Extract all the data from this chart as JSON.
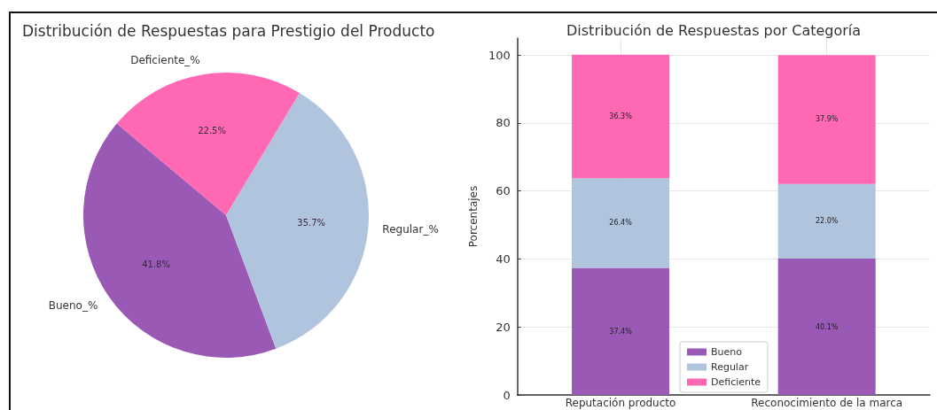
{
  "chart_data": [
    {
      "type": "pie",
      "title": "Distribución de Respuestas para Prestigio del Producto",
      "categories": [
        "Bueno_%",
        "Regular_%",
        "Deficiente_%"
      ],
      "values": [
        41.8,
        35.7,
        22.5
      ],
      "colors": [
        "#9b59b6",
        "#b0c4de",
        "#ff69b4"
      ],
      "value_labels": [
        "41.8%",
        "35.7%",
        "22.5%"
      ]
    },
    {
      "type": "bar",
      "stacked": true,
      "title": "Distribución de Respuestas por Categoría",
      "ylabel": "Porcentajes",
      "categories": [
        "Reputación producto",
        "Reconocimiento de la marca"
      ],
      "series": [
        {
          "name": "Bueno",
          "color": "#9b59b6",
          "values": [
            37.4,
            40.1
          ],
          "value_labels": [
            "37.4%",
            "40.1%"
          ]
        },
        {
          "name": "Regular",
          "color": "#b0c4de",
          "values": [
            26.4,
            22.0
          ],
          "value_labels": [
            "26.4%",
            "22.0%"
          ]
        },
        {
          "name": "Deficiente",
          "color": "#ff69b4",
          "values": [
            36.3,
            37.9
          ],
          "value_labels": [
            "36.3%",
            "37.9%"
          ]
        }
      ],
      "ylim": [
        0,
        105
      ],
      "yticks": [
        0,
        20,
        40,
        60,
        80,
        100
      ],
      "grid": true,
      "legend": "bottom"
    }
  ]
}
